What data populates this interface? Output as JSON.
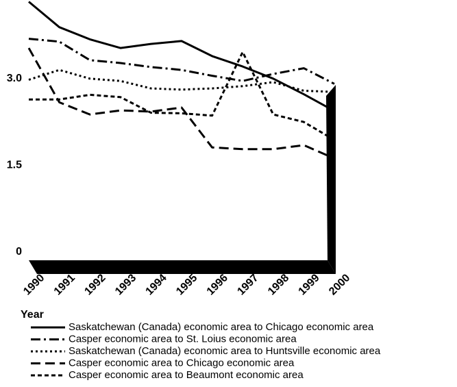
{
  "chart_data": {
    "type": "line",
    "x_label": "Year",
    "categories": [
      "1990",
      "1991",
      "1992",
      "1993",
      "1994",
      "1995",
      "1996",
      "1997",
      "1998",
      "1999",
      "2000"
    ],
    "ylim": [
      0,
      4.36
    ],
    "yticks": [
      0,
      1.5,
      {
        "value": 3,
        "label": "3.0"
      }
    ],
    "series": [
      {
        "name": "Saskatchewan (Canada) economic area to Chicago economic area",
        "color": "#000000",
        "dash": "none",
        "values": [
          4.33,
          3.89,
          3.68,
          3.53,
          3.6,
          3.65,
          3.39,
          3.21,
          3.0,
          2.73,
          2.44
        ]
      },
      {
        "name": "Casper economic area to St. Loius economic area",
        "color": "#000000",
        "dash": "14 5 3 5",
        "values": [
          3.69,
          3.64,
          3.32,
          3.27,
          3.2,
          3.15,
          3.05,
          2.96,
          3.08,
          3.18,
          2.91
        ]
      },
      {
        "name": "Saskatchewan (Canada) economic area to Huntsville economic area",
        "color": "#000000",
        "dash": "3 4",
        "values": [
          2.98,
          3.15,
          3.0,
          2.96,
          2.83,
          2.81,
          2.83,
          2.87,
          2.94,
          2.79,
          2.77
        ]
      },
      {
        "name": "Casper economic area to Chicago economic area",
        "color": "#000000",
        "dash": "14 7",
        "values": [
          3.53,
          2.59,
          2.38,
          2.45,
          2.43,
          2.5,
          1.81,
          1.78,
          1.78,
          1.85,
          1.62
        ]
      },
      {
        "name": "Casper economic area to Beaumont economic area",
        "color": "#000000",
        "dash": "6 4",
        "values": [
          2.64,
          2.64,
          2.72,
          2.68,
          2.41,
          2.4,
          2.36,
          3.46,
          2.38,
          2.25,
          1.94
        ]
      }
    ]
  }
}
